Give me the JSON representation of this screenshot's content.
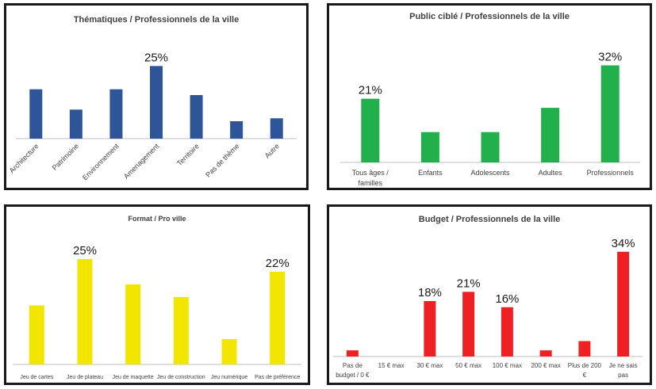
{
  "charts": [
    {
      "key": "thematiques",
      "color": "#2e5597",
      "chart_data": {
        "type": "bar",
        "title": "Thématiques / Professionnels de la ville",
        "categories": [
          "Architecture",
          "Patrimoine",
          "Environnement",
          "Amenagement",
          "Territoire",
          "Pas de thème",
          "Autre"
        ],
        "values": [
          17,
          10,
          17,
          25,
          15,
          6,
          7
        ],
        "data_labels": [
          "",
          "",
          "",
          "25%",
          "",
          "",
          ""
        ],
        "ylim": [
          0,
          30
        ],
        "grid": false,
        "legend": "none"
      }
    },
    {
      "key": "public",
      "color": "#21b04b",
      "chart_data": {
        "type": "bar",
        "title": "Public ciblé / Professionnels de la ville",
        "categories": [
          "Tous âges / familles",
          "Enfants",
          "Adolescents",
          "Adultes",
          "Professionnels"
        ],
        "values": [
          21,
          10,
          10,
          18,
          32
        ],
        "data_labels": [
          "21%",
          "",
          "",
          "",
          "32%"
        ],
        "ylim": [
          0,
          35
        ],
        "grid": false,
        "legend": "none"
      }
    },
    {
      "key": "format",
      "color": "#f2e600",
      "chart_data": {
        "type": "bar",
        "title": "Format / Pro ville",
        "categories": [
          "Jeu de cartes",
          "Jeu de plateau",
          "Jeu de maquette",
          "Jeu de construction",
          "Jeu numérique",
          "Pas de préférence"
        ],
        "values": [
          14,
          25,
          19,
          16,
          6,
          22
        ],
        "data_labels": [
          "",
          "25%",
          "",
          "",
          "",
          "22%"
        ],
        "ylim": [
          0,
          28
        ],
        "grid": false,
        "legend": "none"
      }
    },
    {
      "key": "budget",
      "color": "#ee2024",
      "chart_data": {
        "type": "bar",
        "title": "Budget / Professionnels de la ville",
        "categories": [
          "Pas de budget / 0 €",
          "15 € max",
          "30 € max",
          "50 € max",
          "100 € max",
          "200 € max",
          "Plus de 200 €",
          "Je ne sais pas"
        ],
        "values": [
          2,
          0,
          18,
          21,
          16,
          2,
          5,
          34
        ],
        "data_labels": [
          "",
          "",
          "18%",
          "21%",
          "16%",
          "",
          "",
          "34%"
        ],
        "ylim": [
          0,
          36
        ],
        "grid": false,
        "legend": "none"
      }
    }
  ]
}
